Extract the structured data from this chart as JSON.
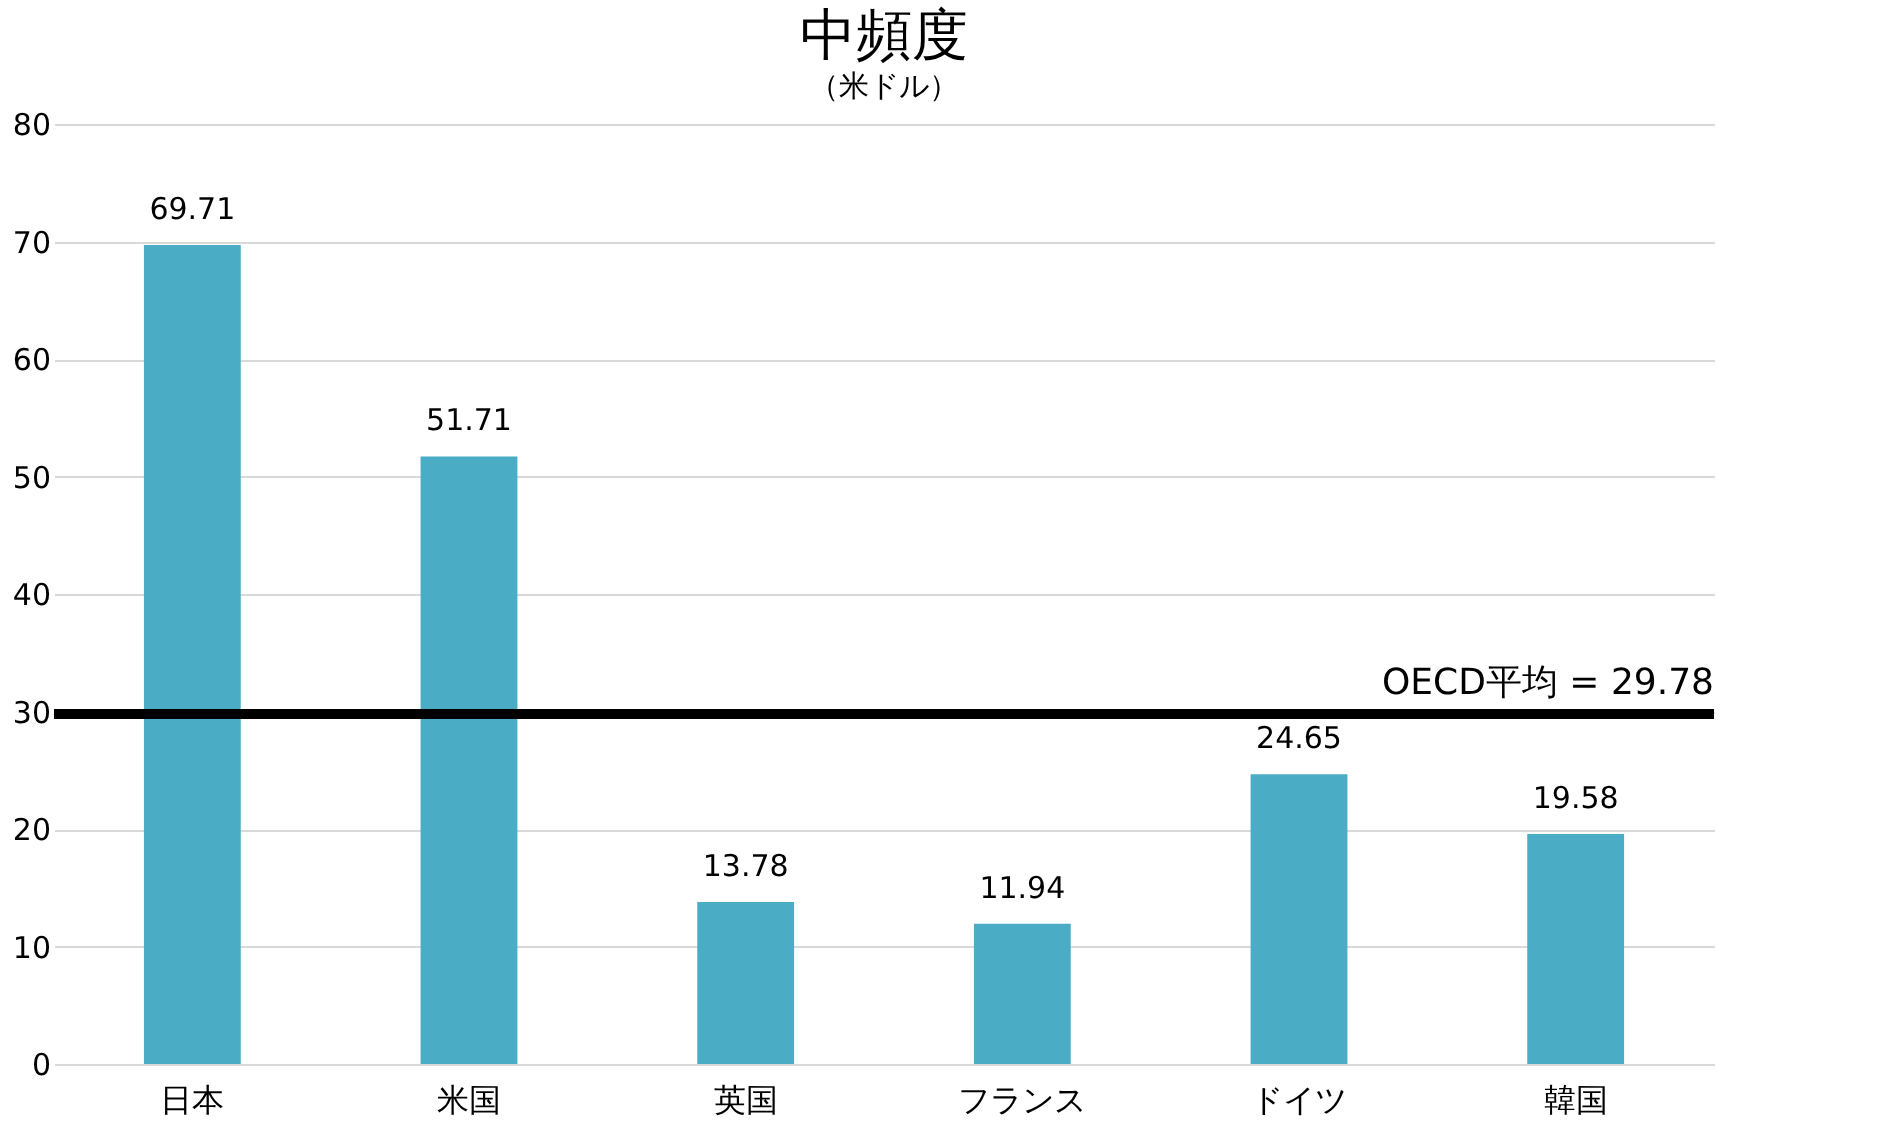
{
  "chart_data": {
    "type": "bar",
    "title": "中頻度",
    "ylabel": "（米ドル）",
    "categories": [
      "日本",
      "米国",
      "英国",
      "フランス",
      "ドイツ",
      "韓国"
    ],
    "values": [
      69.71,
      51.71,
      13.78,
      11.94,
      24.65,
      19.58
    ],
    "color": "#4bacc6",
    "ylim": [
      0,
      80
    ],
    "yticks": [
      0,
      10,
      20,
      30,
      40,
      50,
      60,
      70,
      80
    ],
    "grid": "y",
    "data_labels": true,
    "ref_lines": [
      {
        "axis": "y",
        "value": 29.78,
        "label": "OECD平均 = 29.78",
        "color": "#000000"
      }
    ]
  }
}
